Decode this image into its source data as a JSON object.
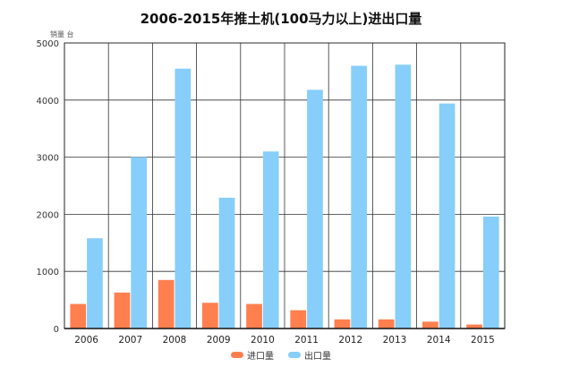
{
  "chart_data": {
    "type": "bar",
    "title": "2006-2015年推土机(100马力以上)进出口量",
    "unit_label": "销量 台",
    "categories": [
      "2006",
      "2007",
      "2008",
      "2009",
      "2010",
      "2011",
      "2012",
      "2013",
      "2014",
      "2015"
    ],
    "series": [
      {
        "name": "进口量",
        "color": "#FF7F4F",
        "values": [
          430,
          630,
          850,
          450,
          430,
          320,
          160,
          160,
          120,
          70
        ]
      },
      {
        "name": "出口量",
        "color": "#87CEFA",
        "values": [
          1580,
          3000,
          4550,
          2290,
          3100,
          4180,
          4600,
          4620,
          3940,
          1960
        ]
      }
    ],
    "ylim": [
      0,
      5000
    ],
    "yticks": [
      0,
      1000,
      2000,
      3000,
      4000,
      5000
    ],
    "grid": true,
    "legend_position": "bottom"
  }
}
